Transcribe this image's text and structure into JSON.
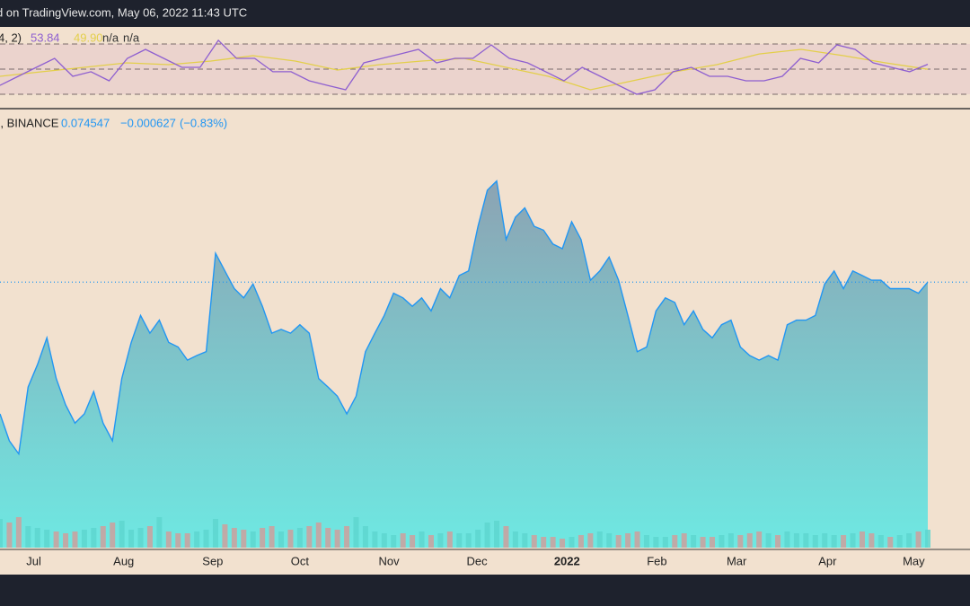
{
  "header": "d on TradingView.com, May 06, 2022 11:43 UTC",
  "chart_data": [
    {
      "type": "line",
      "legend_label": "4, 2)",
      "legend_values": [
        "53.84",
        "49.90",
        "n/a",
        "n/a"
      ],
      "ylim": [
        20,
        85
      ],
      "hlines": [
        70,
        50,
        30
      ],
      "series": [
        {
          "color": "#8e5fd0",
          "values": [
            37.1,
            44.3,
            51.4,
            58.6,
            44.3,
            47.9,
            40.7,
            58.6,
            65.7,
            58.6,
            51.4,
            51.4,
            72.9,
            58.6,
            58.6,
            47.9,
            47.9,
            40.7,
            37.1,
            33.6,
            55,
            58.6,
            62.1,
            65.7,
            55,
            58.6,
            58.6,
            69.3,
            58.6,
            55,
            47.9,
            40.7,
            51.4,
            44.3,
            37.1,
            30,
            33.6,
            47.9,
            51.4,
            44.3,
            44.3,
            40.7,
            40.7,
            44.3,
            58.6,
            55,
            69.3,
            65.7,
            55,
            51.4,
            47.9,
            53.84
          ]
        },
        {
          "color": "#e3cf4a",
          "values": [
            44.3,
            47.9,
            51.4,
            55,
            53.6,
            56.4,
            60.7,
            56.4,
            49.3,
            53.6,
            56.4,
            58.6,
            51.4,
            44.3,
            33.6,
            40.7,
            47.9,
            53.6,
            62.1,
            65.7,
            60.7,
            55,
            49.9
          ]
        }
      ]
    },
    {
      "type": "area",
      "legend_label": "D, BINANCE",
      "change_labels": [
        "−0.000627",
        "(−0.83%)"
      ],
      "color": "#2196f3",
      "xlim": [
        0,
        99
      ],
      "ylim": [
        0.04,
        0.097
      ],
      "xticks": [
        {
          "value": 3.6,
          "label": "Jul"
        },
        {
          "value": 13.2,
          "label": "Aug"
        },
        {
          "value": 22.7,
          "label": "Sep"
        },
        {
          "value": 32.0,
          "label": "Oct"
        },
        {
          "value": 41.5,
          "label": "Nov"
        },
        {
          "value": 50.9,
          "label": "Dec"
        },
        {
          "value": 60.5,
          "label": "2022"
        },
        {
          "value": 70.1,
          "label": "Feb"
        },
        {
          "value": 78.6,
          "label": "Mar"
        },
        {
          "value": 88.3,
          "label": "Apr"
        },
        {
          "value": 97.5,
          "label": "May"
        }
      ],
      "values": [
        0.0574,
        0.0539,
        0.0522,
        0.0609,
        0.0638,
        0.0673,
        0.062,
        0.0586,
        0.0562,
        0.0574,
        0.0603,
        0.0562,
        0.0539,
        0.062,
        0.0667,
        0.0702,
        0.0679,
        0.0696,
        0.0667,
        0.0661,
        0.0644,
        0.065,
        0.0655,
        0.0783,
        0.076,
        0.0737,
        0.0725,
        0.0743,
        0.0714,
        0.0679,
        0.0684,
        0.0679,
        0.069,
        0.0679,
        0.062,
        0.0609,
        0.0597,
        0.0574,
        0.0597,
        0.0655,
        0.0679,
        0.0702,
        0.0731,
        0.0725,
        0.0714,
        0.0725,
        0.0708,
        0.0737,
        0.0725,
        0.0754,
        0.076,
        0.0818,
        0.0865,
        0.0877,
        0.0801,
        0.083,
        0.0842,
        0.0818,
        0.0813,
        0.0795,
        0.0789,
        0.0824,
        0.0801,
        0.0748,
        0.076,
        0.0778,
        0.0748,
        0.0702,
        0.0655,
        0.0661,
        0.0708,
        0.0725,
        0.0719,
        0.069,
        0.0708,
        0.0684,
        0.0673,
        0.069,
        0.0696,
        0.0661,
        0.065,
        0.0644,
        0.065,
        0.0644,
        0.069,
        0.0696,
        0.0696,
        0.0702,
        0.0743,
        0.076,
        0.0737,
        0.076,
        0.0754,
        0.0748,
        0.0748,
        0.0737,
        0.0737,
        0.0737,
        0.0731,
        0.074547
      ],
      "volume": {
        "ylim": [
          0,
          100
        ],
        "up_color": "#5ed6cf",
        "down_color": "#cf9f9c",
        "values": [
          80,
          70,
          85,
          60,
          55,
          50,
          45,
          40,
          45,
          50,
          55,
          60,
          70,
          75,
          50,
          55,
          60,
          85,
          45,
          40,
          40,
          45,
          50,
          80,
          65,
          55,
          50,
          45,
          55,
          60,
          45,
          50,
          55,
          60,
          70,
          55,
          50,
          60,
          85,
          60,
          45,
          40,
          35,
          40,
          35,
          45,
          35,
          40,
          45,
          40,
          40,
          50,
          70,
          75,
          60,
          45,
          40,
          35,
          30,
          30,
          25,
          30,
          35,
          40,
          45,
          40,
          35,
          40,
          45,
          35,
          30,
          30,
          35,
          40,
          35,
          30,
          30,
          35,
          40,
          35,
          40,
          45,
          40,
          35,
          45,
          40,
          40,
          35,
          40,
          35,
          35,
          40,
          45,
          40,
          35,
          30,
          35,
          40,
          45,
          50
        ]
      }
    }
  ]
}
